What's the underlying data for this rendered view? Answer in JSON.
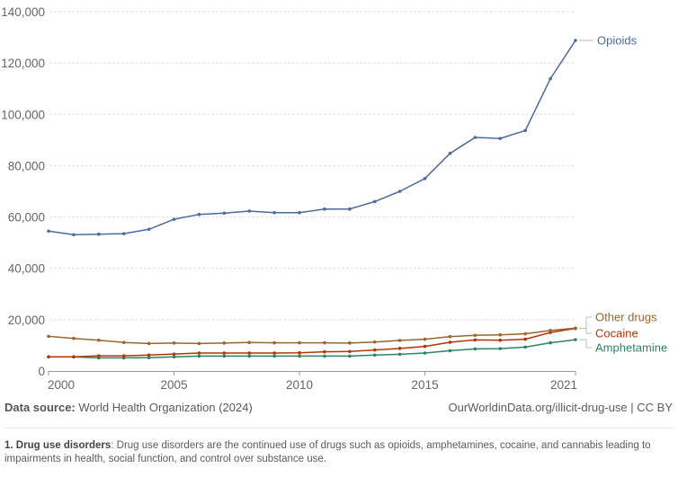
{
  "chart_data": {
    "type": "line",
    "title": "",
    "xlabel": "",
    "ylabel": "",
    "x": [
      2000,
      2001,
      2002,
      2003,
      2004,
      2005,
      2006,
      2007,
      2008,
      2009,
      2010,
      2011,
      2012,
      2013,
      2014,
      2015,
      2016,
      2017,
      2018,
      2019,
      2020,
      2021
    ],
    "xlim": [
      2000,
      2021
    ],
    "ylim": [
      0,
      140000
    ],
    "x_ticks": [
      "2000",
      "2005",
      "2010",
      "2015",
      "2021"
    ],
    "x_tick_values": [
      2000,
      2005,
      2010,
      2015,
      2021
    ],
    "y_ticks": [
      "0",
      "20,000",
      "40,000",
      "60,000",
      "80,000",
      "100,000",
      "120,000",
      "140,000"
    ],
    "y_tick_values": [
      0,
      20000,
      40000,
      60000,
      80000,
      100000,
      120000,
      140000
    ],
    "grid": "horizontal-dashed",
    "legend": "inline-right",
    "series": [
      {
        "name": "Opioids",
        "color": "#4c6a9c",
        "values": [
          54500,
          53100,
          53300,
          53500,
          55200,
          59100,
          61000,
          61500,
          62300,
          61700,
          61700,
          63100,
          63100,
          66000,
          70000,
          75000,
          84800,
          91000,
          90600,
          93700,
          113900,
          128800
        ]
      },
      {
        "name": "Other drugs",
        "color": "#9a652e",
        "values": [
          13500,
          12700,
          12000,
          11100,
          10700,
          10900,
          10700,
          10900,
          11100,
          11000,
          11000,
          11000,
          10900,
          11300,
          11900,
          12400,
          13400,
          13900,
          14100,
          14500,
          15800,
          16700
        ]
      },
      {
        "name": "Cocaine",
        "color": "#b13507",
        "values": [
          5500,
          5500,
          5900,
          5900,
          6200,
          6600,
          7000,
          7000,
          7000,
          7000,
          7100,
          7500,
          7600,
          8200,
          8800,
          9600,
          11200,
          12100,
          12000,
          12400,
          15000,
          16600
        ]
      },
      {
        "name": "Amphetamine",
        "color": "#2c8465",
        "values": [
          5500,
          5500,
          5100,
          5100,
          5200,
          5500,
          5800,
          5800,
          5800,
          5800,
          5800,
          5800,
          5800,
          6200,
          6500,
          7000,
          7900,
          8600,
          8700,
          9300,
          11000,
          12200
        ]
      }
    ]
  },
  "footer": {
    "source_label": "Data source:",
    "source_value": "World Health Organization (2024)",
    "url": "OurWorldinData.org/illicit-drug-use | CC BY",
    "note_number": "1.",
    "note_term": "Drug use disorders",
    "note_text": ": Drug use disorders are the continued use of drugs such as opioids, amphetamines, cocaine, and cannabis leading to impairments in health, social function, and control over substance use."
  }
}
